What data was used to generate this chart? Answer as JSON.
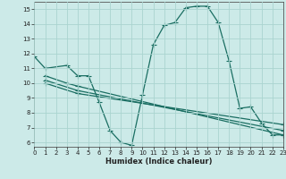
{
  "xlabel": "Humidex (Indice chaleur)",
  "bg_color": "#cceae8",
  "grid_color": "#aad4d0",
  "line_color": "#1a6e62",
  "line1_x": [
    0,
    1,
    3,
    4,
    5,
    6,
    7,
    8,
    9,
    10,
    11,
    12,
    13,
    14,
    15,
    16,
    17,
    18,
    19,
    20,
    21,
    22,
    23
  ],
  "line1_y": [
    11.8,
    11.0,
    11.2,
    10.5,
    10.5,
    8.7,
    6.8,
    6.0,
    5.8,
    9.2,
    12.6,
    13.9,
    14.1,
    15.1,
    15.2,
    15.2,
    14.1,
    11.5,
    8.3,
    8.4,
    7.3,
    6.5,
    6.5
  ],
  "line2_x": [
    1,
    3,
    4,
    23
  ],
  "line2_y": [
    10.5,
    10.0,
    9.8,
    6.5
  ],
  "line3_x": [
    1,
    4,
    23
  ],
  "line3_y": [
    10.2,
    9.5,
    6.8
  ],
  "line4_x": [
    1,
    4,
    23
  ],
  "line4_y": [
    10.0,
    9.3,
    7.2
  ],
  "xlim": [
    0,
    23
  ],
  "ylim": [
    5.7,
    15.5
  ],
  "yticks": [
    6,
    7,
    8,
    9,
    10,
    11,
    12,
    13,
    14,
    15
  ],
  "xticks": [
    0,
    1,
    2,
    3,
    4,
    5,
    6,
    7,
    8,
    9,
    10,
    11,
    12,
    13,
    14,
    15,
    16,
    17,
    18,
    19,
    20,
    21,
    22,
    23
  ]
}
